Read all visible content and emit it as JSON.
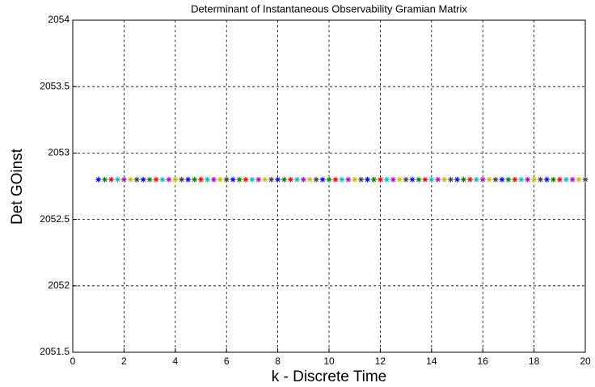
{
  "chart_data": {
    "type": "scatter",
    "title": "Determinant of Instantaneous Observability Gramian Matrix",
    "x_label": "k - Discrete Time",
    "y_label": "Det GOinst",
    "x": [
      1,
      1.25,
      1.5,
      1.75,
      2,
      2.25,
      2.5,
      2.75,
      3,
      3.25,
      3.5,
      3.75,
      4,
      4.25,
      4.5,
      4.75,
      5,
      5.25,
      5.5,
      5.75,
      6,
      6.25,
      6.5,
      6.75,
      7,
      7.25,
      7.5,
      7.75,
      8,
      8.25,
      8.5,
      8.75,
      9,
      9.25,
      9.5,
      9.75,
      10,
      10.25,
      10.5,
      10.75,
      11,
      11.25,
      11.5,
      11.75,
      12,
      12.25,
      12.5,
      12.75,
      13,
      13.25,
      13.5,
      13.75,
      14,
      14.25,
      14.5,
      14.75,
      15,
      15.25,
      15.5,
      15.75,
      16,
      16.25,
      16.5,
      16.75,
      17,
      17.25,
      17.5,
      17.75,
      18,
      18.25,
      18.5,
      18.75,
      19,
      19.25,
      19.5,
      19.75,
      20
    ],
    "values": [
      2052.8,
      2052.8,
      2052.8,
      2052.8,
      2052.8,
      2052.8,
      2052.8,
      2052.8,
      2052.8,
      2052.8,
      2052.8,
      2052.8,
      2052.8,
      2052.8,
      2052.8,
      2052.8,
      2052.8,
      2052.8,
      2052.8,
      2052.8,
      2052.8,
      2052.8,
      2052.8,
      2052.8,
      2052.8,
      2052.8,
      2052.8,
      2052.8,
      2052.8,
      2052.8,
      2052.8,
      2052.8,
      2052.8,
      2052.8,
      2052.8,
      2052.8,
      2052.8,
      2052.8,
      2052.8,
      2052.8,
      2052.8,
      2052.8,
      2052.8,
      2052.8,
      2052.8,
      2052.8,
      2052.8,
      2052.8,
      2052.8,
      2052.8,
      2052.8,
      2052.8,
      2052.8,
      2052.8,
      2052.8,
      2052.8,
      2052.8,
      2052.8,
      2052.8,
      2052.8,
      2052.8,
      2052.8,
      2052.8,
      2052.8,
      2052.8,
      2052.8,
      2052.8,
      2052.8,
      2052.8,
      2052.8,
      2052.8,
      2052.8,
      2052.8,
      2052.8,
      2052.8,
      2052.8,
      2052.8
    ],
    "marker_colors": [
      "#0000ff",
      "#008000",
      "#ff0000",
      "#00bfbf",
      "#bf00bf",
      "#bfbf00",
      "#404040"
    ],
    "xlim": [
      0,
      20
    ],
    "xticks": [
      0,
      2,
      4,
      6,
      8,
      10,
      12,
      14,
      16,
      18,
      20
    ],
    "ylim": [
      2051.5,
      2054
    ],
    "yticks": [
      2051.5,
      2052,
      2052.5,
      2053,
      2053.5,
      2054
    ],
    "grid": true
  }
}
